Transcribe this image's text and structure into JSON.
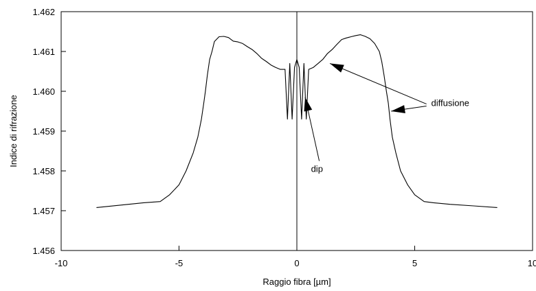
{
  "chart_data": {
    "type": "line",
    "title": "",
    "xlabel": "Raggio fibra [µm]",
    "ylabel": "Indice di rifrazione",
    "xlim": [
      -10,
      10
    ],
    "ylim": [
      1.456,
      1.462
    ],
    "x_ticks": [
      -10,
      -5,
      0,
      5,
      10
    ],
    "y_ticks": [
      1.456,
      1.457,
      1.458,
      1.459,
      1.46,
      1.461,
      1.462
    ],
    "x_tick_labels": [
      "-10",
      "-5",
      "0",
      "5",
      "10"
    ],
    "y_tick_labels": [
      "1.456",
      "1.457",
      "1.458",
      "1.459",
      "1.460",
      "1.461",
      "1.462"
    ],
    "grid": false,
    "legend": "none",
    "line_color": "#000000",
    "series": [
      {
        "x": [
          -8.5,
          -7.5,
          -6.5,
          -5.8,
          -5.4,
          -5.0,
          -4.7,
          -4.4,
          -4.2,
          -4.05,
          -3.95,
          -3.88,
          -3.8,
          -3.7,
          -3.6,
          -3.5,
          -3.3,
          -3.1,
          -2.9,
          -2.7,
          -2.5,
          -2.3,
          -2.1,
          -1.9,
          -1.7,
          -1.5,
          -1.3,
          -1.1,
          -0.9,
          -0.7,
          -0.5,
          -0.4,
          -0.3,
          -0.2,
          -0.1,
          0.0,
          0.1,
          0.2,
          0.3,
          0.4,
          0.5,
          0.7,
          0.9,
          1.1,
          1.3,
          1.5,
          1.7,
          1.9,
          2.1,
          2.3,
          2.5,
          2.7,
          2.9,
          3.1,
          3.3,
          3.5,
          3.6,
          3.7,
          3.8,
          3.88,
          3.95,
          4.05,
          4.2,
          4.4,
          4.7,
          5.0,
          5.4,
          5.8,
          6.5,
          7.5,
          8.5
        ],
        "y": [
          1.45708,
          1.45714,
          1.4572,
          1.45723,
          1.4574,
          1.45765,
          1.458,
          1.45845,
          1.45885,
          1.4593,
          1.4597,
          1.46,
          1.4604,
          1.4608,
          1.461,
          1.46125,
          1.46137,
          1.46138,
          1.46135,
          1.46126,
          1.46124,
          1.4612,
          1.46112,
          1.46105,
          1.46095,
          1.46083,
          1.46075,
          1.46066,
          1.4606,
          1.46055,
          1.46055,
          1.4593,
          1.4607,
          1.4593,
          1.4606,
          1.4608,
          1.4606,
          1.4593,
          1.4607,
          1.4593,
          1.46055,
          1.4606,
          1.4607,
          1.4608,
          1.46095,
          1.46105,
          1.46118,
          1.4613,
          1.46134,
          1.46137,
          1.4614,
          1.46142,
          1.46138,
          1.46132,
          1.4612,
          1.461,
          1.46075,
          1.4604,
          1.46,
          1.4597,
          1.4593,
          1.45885,
          1.45845,
          1.458,
          1.45765,
          1.4574,
          1.45723,
          1.4572,
          1.45716,
          1.45712,
          1.45708
        ]
      }
    ],
    "center_line_x": 0,
    "annotations": [
      {
        "text": "dip",
        "text_x": 0.6,
        "text_y": 1.45797,
        "arrows": [
          {
            "from": [
              0.95,
              1.45825
            ],
            "to": [
              0.35,
              1.45985
            ]
          }
        ]
      },
      {
        "text": "diffusione",
        "text_x": 5.7,
        "text_y": 1.45963,
        "arrows": [
          {
            "from": [
              5.5,
              1.45968
            ],
            "to": [
              1.4,
              1.4607
            ]
          },
          {
            "from": [
              5.5,
              1.45963
            ],
            "to": [
              4.0,
              1.4595
            ]
          }
        ]
      }
    ]
  }
}
